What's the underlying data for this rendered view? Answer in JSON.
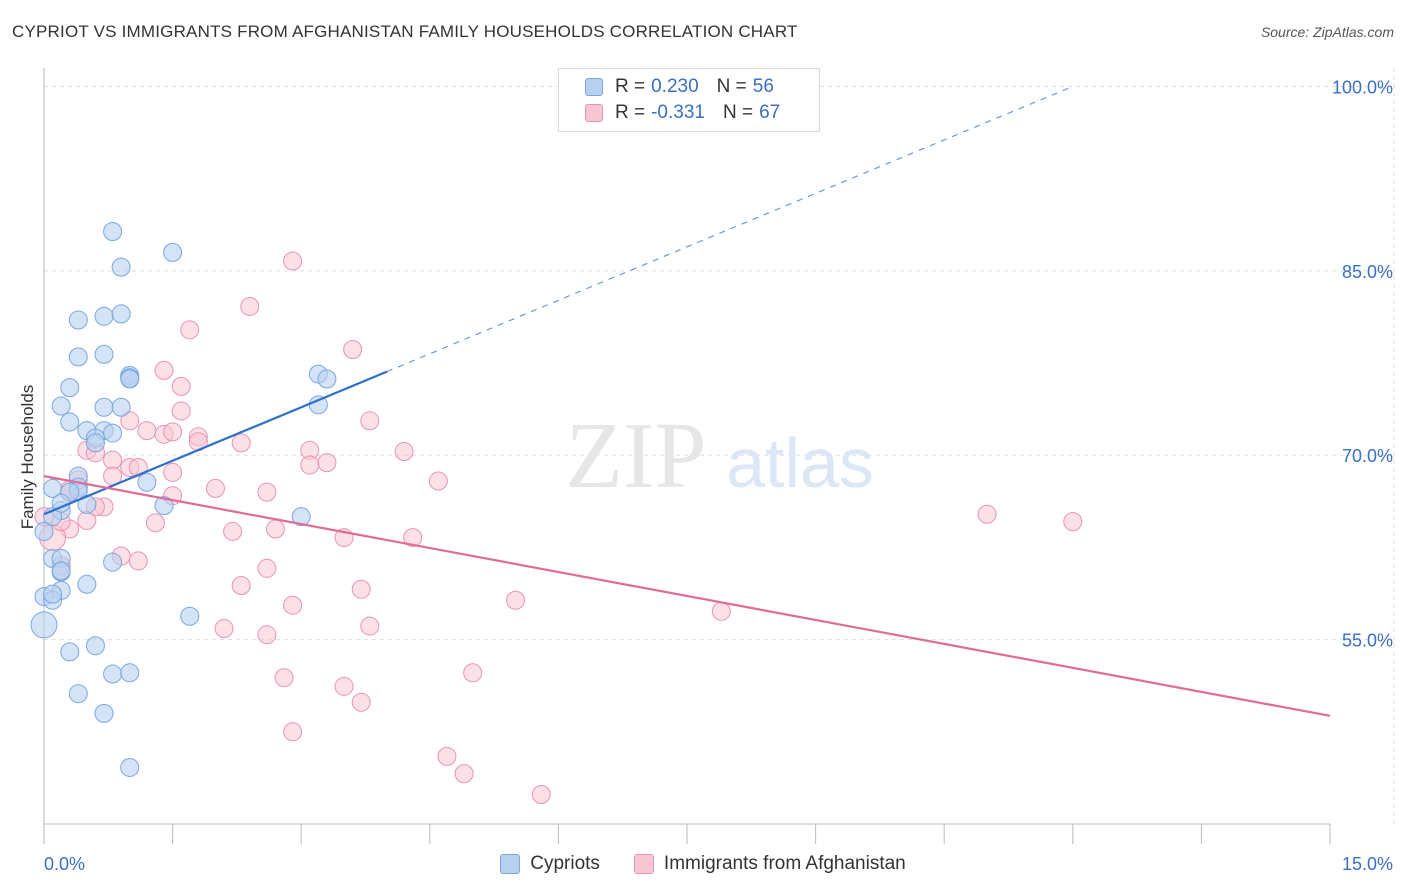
{
  "header": {
    "title": "CYPRIOT VS IMMIGRANTS FROM AFGHANISTAN FAMILY HOUSEHOLDS CORRELATION CHART",
    "source": "Source: ZipAtlas.com"
  },
  "watermark": {
    "zip": "ZIP",
    "atlas": "atlas"
  },
  "legend_top": {
    "rows": [
      {
        "r_label": "R =",
        "r_value": "0.230",
        "n_label": "N =",
        "n_value": "56"
      },
      {
        "r_label": "R =",
        "r_value": "-0.331",
        "n_label": "N =",
        "n_value": "67"
      }
    ]
  },
  "legend_bottom": {
    "items": [
      {
        "label": "Cypriots"
      },
      {
        "label": "Immigrants from Afghanistan"
      }
    ]
  },
  "colors": {
    "blue_fill": "#b8d0f0",
    "blue_stroke": "#7aa7e0",
    "blue_line": "#2e6fca",
    "pink_fill": "#f7c6d4",
    "pink_stroke": "#e994b0",
    "pink_line": "#e06b99",
    "tick_label": "#3a6fc4",
    "grid": "#dddddd"
  },
  "chart_data": {
    "type": "scatter",
    "title": "CYPRIOT VS IMMIGRANTS FROM AFGHANISTAN FAMILY HOUSEHOLDS CORRELATION CHART",
    "xlabel": "",
    "ylabel": "Family Households",
    "xlim": [
      0,
      15
    ],
    "ylim": [
      40,
      101.5
    ],
    "x_tick_labels": [
      "0.0%",
      "15.0%"
    ],
    "y_ticks": [
      55,
      70,
      85,
      100
    ],
    "y_tick_labels": [
      "55.0%",
      "70.0%",
      "85.0%",
      "100.0%"
    ],
    "grid": true,
    "series": [
      {
        "name": "Cypriots",
        "r": 0.23,
        "n": 56,
        "trend": {
          "x0": 0.0,
          "y0": 65.2,
          "x1": 4.0,
          "y1": 76.8,
          "dash_x1": 12.0,
          "dash_y1": 100.0
        },
        "points": [
          [
            0.8,
            88.2
          ],
          [
            1.5,
            86.5
          ],
          [
            0.9,
            85.3
          ],
          [
            0.7,
            81.3
          ],
          [
            0.4,
            81.0
          ],
          [
            0.9,
            81.5
          ],
          [
            0.7,
            78.2
          ],
          [
            0.4,
            78.0
          ],
          [
            1.0,
            76.5
          ],
          [
            1.0,
            76.3
          ],
          [
            1.0,
            76.2
          ],
          [
            3.2,
            76.6
          ],
          [
            3.3,
            76.2
          ],
          [
            0.3,
            75.5
          ],
          [
            3.2,
            74.1
          ],
          [
            0.2,
            74.0
          ],
          [
            0.7,
            73.9
          ],
          [
            0.9,
            73.9
          ],
          [
            0.3,
            72.7
          ],
          [
            0.5,
            72.0
          ],
          [
            0.7,
            72.0
          ],
          [
            0.8,
            71.8
          ],
          [
            0.6,
            71.4
          ],
          [
            0.6,
            71.0
          ],
          [
            0.4,
            68.3
          ],
          [
            0.4,
            67.4
          ],
          [
            0.4,
            67.1
          ],
          [
            0.1,
            67.3
          ],
          [
            1.2,
            67.8
          ],
          [
            0.5,
            66.0
          ],
          [
            0.2,
            65.5
          ],
          [
            1.4,
            65.9
          ],
          [
            0.1,
            65.0
          ],
          [
            3.0,
            65.0
          ],
          [
            0.0,
            63.8
          ],
          [
            0.1,
            61.6
          ],
          [
            0.2,
            61.6
          ],
          [
            0.8,
            61.3
          ],
          [
            0.2,
            60.5
          ],
          [
            0.2,
            60.6
          ],
          [
            0.5,
            59.5
          ],
          [
            0.2,
            59.0
          ],
          [
            0.0,
            58.5
          ],
          [
            0.1,
            58.2
          ],
          [
            1.7,
            56.9
          ],
          [
            0.0,
            56.2
          ],
          [
            0.6,
            54.5
          ],
          [
            0.3,
            54.0
          ],
          [
            0.8,
            52.2
          ],
          [
            1.0,
            52.3
          ],
          [
            0.4,
            50.6
          ],
          [
            0.7,
            49.0
          ],
          [
            1.0,
            44.6
          ],
          [
            0.1,
            58.7
          ],
          [
            0.3,
            67.0
          ],
          [
            0.2,
            66.1
          ]
        ],
        "point_sizes": [
          9,
          9,
          9,
          9,
          9,
          9,
          9,
          9,
          9,
          9,
          9,
          9,
          9,
          9,
          9,
          9,
          9,
          9,
          9,
          9,
          9,
          9,
          9,
          9,
          9,
          9,
          9,
          9,
          9,
          9,
          9,
          9,
          9,
          9,
          9,
          9,
          9,
          9,
          9,
          9,
          9,
          9,
          9,
          9,
          9,
          13,
          9,
          9,
          9,
          9,
          9,
          9,
          9,
          9,
          9,
          9
        ]
      },
      {
        "name": "Immigrants from Afghanistan",
        "r": -0.331,
        "n": 67,
        "trend": {
          "x0": 0.0,
          "y0": 68.3,
          "x1": 15.0,
          "y1": 48.8
        },
        "points": [
          [
            2.9,
            85.8
          ],
          [
            2.4,
            82.1
          ],
          [
            1.7,
            80.2
          ],
          [
            3.6,
            78.6
          ],
          [
            1.4,
            76.9
          ],
          [
            1.6,
            75.6
          ],
          [
            1.6,
            73.6
          ],
          [
            3.8,
            72.8
          ],
          [
            1.0,
            72.8
          ],
          [
            1.2,
            72.0
          ],
          [
            1.4,
            71.7
          ],
          [
            1.5,
            71.9
          ],
          [
            1.8,
            71.5
          ],
          [
            1.8,
            71.1
          ],
          [
            2.3,
            71.0
          ],
          [
            0.5,
            70.4
          ],
          [
            3.1,
            70.4
          ],
          [
            4.2,
            70.3
          ],
          [
            0.6,
            70.2
          ],
          [
            0.8,
            69.6
          ],
          [
            3.3,
            69.4
          ],
          [
            3.1,
            69.2
          ],
          [
            1.0,
            69.0
          ],
          [
            1.1,
            69.0
          ],
          [
            0.4,
            68.0
          ],
          [
            1.5,
            68.6
          ],
          [
            0.8,
            68.3
          ],
          [
            4.6,
            67.9
          ],
          [
            0.3,
            67.2
          ],
          [
            2.0,
            67.3
          ],
          [
            2.6,
            67.0
          ],
          [
            1.5,
            66.7
          ],
          [
            0.7,
            65.8
          ],
          [
            0.6,
            65.8
          ],
          [
            11.0,
            65.2
          ],
          [
            12.0,
            64.6
          ],
          [
            0.5,
            64.7
          ],
          [
            1.3,
            64.5
          ],
          [
            0.3,
            64.0
          ],
          [
            2.7,
            64.0
          ],
          [
            2.2,
            63.8
          ],
          [
            3.5,
            63.3
          ],
          [
            4.3,
            63.3
          ],
          [
            0.1,
            63.3
          ],
          [
            0.9,
            61.8
          ],
          [
            1.1,
            61.4
          ],
          [
            2.6,
            60.8
          ],
          [
            2.3,
            59.4
          ],
          [
            3.7,
            59.1
          ],
          [
            5.5,
            58.2
          ],
          [
            2.9,
            57.8
          ],
          [
            7.9,
            57.3
          ],
          [
            3.8,
            56.1
          ],
          [
            2.1,
            55.9
          ],
          [
            2.6,
            55.4
          ],
          [
            5.0,
            52.3
          ],
          [
            2.8,
            51.9
          ],
          [
            3.5,
            51.2
          ],
          [
            3.7,
            49.9
          ],
          [
            2.9,
            47.5
          ],
          [
            4.7,
            45.5
          ],
          [
            4.9,
            44.1
          ],
          [
            5.8,
            42.4
          ],
          [
            0.2,
            61.0
          ],
          [
            0.3,
            67.0
          ],
          [
            0.2,
            64.6
          ],
          [
            0.0,
            65.0
          ]
        ],
        "point_sizes": [
          9,
          9,
          9,
          9,
          9,
          9,
          9,
          9,
          9,
          9,
          9,
          9,
          9,
          9,
          9,
          9,
          9,
          9,
          9,
          9,
          9,
          9,
          9,
          9,
          9,
          9,
          9,
          9,
          9,
          9,
          9,
          9,
          9,
          9,
          9,
          9,
          9,
          9,
          9,
          9,
          9,
          9,
          9,
          13,
          9,
          9,
          9,
          9,
          9,
          9,
          9,
          9,
          9,
          9,
          9,
          9,
          9,
          9,
          9,
          9,
          9,
          9,
          9,
          9,
          9,
          9,
          9
        ]
      }
    ]
  }
}
